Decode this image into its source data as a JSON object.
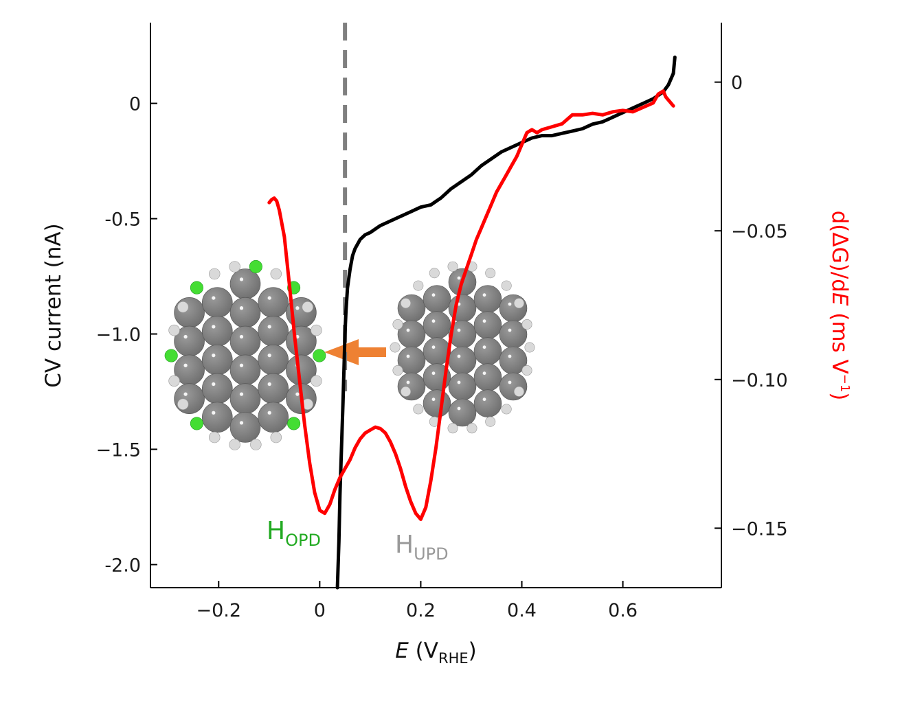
{
  "chart_data": {
    "type": "line",
    "xlabel": {
      "main": "E",
      "open": " (V",
      "sub": "RHE",
      "close": ")"
    },
    "ylabel_left": "CV current (nA)",
    "ylabel_right": {
      "main": "d(ΔG)/d",
      "italic": "E",
      "unit_open": " (ms V",
      "sup": "−1",
      "unit_close": ")"
    },
    "xlim": [
      -0.335,
      0.795
    ],
    "ylim_left": [
      -2.1,
      0.35
    ],
    "ylim_right": [
      -0.17,
      0.02
    ],
    "x_ticks": [
      {
        "value": -0.2,
        "label": "−0.2"
      },
      {
        "value": 0,
        "label": "0"
      },
      {
        "value": 0.2,
        "label": "0.2"
      },
      {
        "value": 0.4,
        "label": "0.4"
      },
      {
        "value": 0.6,
        "label": "0.6"
      }
    ],
    "y_left_ticks": [
      {
        "value": 0,
        "label": "0"
      },
      {
        "value": -0.5,
        "label": "-0.5"
      },
      {
        "value": -1.0,
        "label": "−1.0"
      },
      {
        "value": -1.5,
        "label": "−1.5"
      },
      {
        "value": -2.0,
        "label": "-2.0"
      }
    ],
    "y_right_ticks": [
      {
        "value": 0,
        "label": "0"
      },
      {
        "value": -0.05,
        "label": "−0.05"
      },
      {
        "value": -0.1,
        "label": "−0.10"
      },
      {
        "value": -0.15,
        "label": "−0.15"
      }
    ],
    "series": [
      {
        "axis": "left",
        "color": "#000000",
        "x": [
          0.035,
          0.038,
          0.04,
          0.043,
          0.046,
          0.048,
          0.05,
          0.052,
          0.055,
          0.06,
          0.065,
          0.07,
          0.08,
          0.09,
          0.1,
          0.12,
          0.15,
          0.18,
          0.2,
          0.22,
          0.24,
          0.26,
          0.28,
          0.3,
          0.32,
          0.34,
          0.36,
          0.38,
          0.4,
          0.42,
          0.44,
          0.46,
          0.48,
          0.5,
          0.52,
          0.54,
          0.56,
          0.58,
          0.6,
          0.62,
          0.64,
          0.66,
          0.68,
          0.69,
          0.7,
          0.703
        ],
        "values": [
          -2.1,
          -1.9,
          -1.7,
          -1.5,
          -1.3,
          -1.15,
          -1.0,
          -0.9,
          -0.8,
          -0.72,
          -0.66,
          -0.63,
          -0.59,
          -0.57,
          -0.56,
          -0.53,
          -0.5,
          -0.47,
          -0.45,
          -0.44,
          -0.41,
          -0.37,
          -0.34,
          -0.31,
          -0.27,
          -0.24,
          -0.21,
          -0.19,
          -0.17,
          -0.15,
          -0.14,
          -0.14,
          -0.13,
          -0.12,
          -0.11,
          -0.09,
          -0.08,
          -0.06,
          -0.04,
          -0.02,
          0.0,
          0.02,
          0.05,
          0.08,
          0.13,
          0.2
        ]
      },
      {
        "axis": "right",
        "color": "#ff0000",
        "x": [
          -0.1,
          -0.095,
          -0.09,
          -0.085,
          -0.08,
          -0.07,
          -0.06,
          -0.05,
          -0.04,
          -0.03,
          -0.02,
          -0.01,
          0.0,
          0.01,
          0.02,
          0.03,
          0.04,
          0.05,
          0.06,
          0.07,
          0.08,
          0.09,
          0.1,
          0.11,
          0.12,
          0.13,
          0.14,
          0.15,
          0.16,
          0.17,
          0.18,
          0.19,
          0.2,
          0.21,
          0.22,
          0.23,
          0.24,
          0.25,
          0.26,
          0.27,
          0.28,
          0.29,
          0.3,
          0.31,
          0.32,
          0.33,
          0.34,
          0.35,
          0.36,
          0.37,
          0.38,
          0.39,
          0.4,
          0.41,
          0.42,
          0.43,
          0.44,
          0.46,
          0.48,
          0.5,
          0.52,
          0.54,
          0.56,
          0.58,
          0.6,
          0.62,
          0.64,
          0.66,
          0.67,
          0.68,
          0.685,
          0.69,
          0.7
        ],
        "values": [
          -0.0405,
          -0.0395,
          -0.039,
          -0.04,
          -0.043,
          -0.052,
          -0.068,
          -0.085,
          -0.1,
          -0.115,
          -0.128,
          -0.138,
          -0.144,
          -0.145,
          -0.142,
          -0.137,
          -0.133,
          -0.13,
          -0.127,
          -0.123,
          -0.12,
          -0.118,
          -0.117,
          -0.116,
          -0.1165,
          -0.118,
          -0.121,
          -0.125,
          -0.13,
          -0.136,
          -0.141,
          -0.145,
          -0.147,
          -0.143,
          -0.134,
          -0.123,
          -0.11,
          -0.097,
          -0.085,
          -0.075,
          -0.068,
          -0.063,
          -0.058,
          -0.053,
          -0.049,
          -0.045,
          -0.041,
          -0.037,
          -0.034,
          -0.031,
          -0.028,
          -0.025,
          -0.021,
          -0.017,
          -0.016,
          -0.017,
          -0.016,
          -0.015,
          -0.014,
          -0.011,
          -0.011,
          -0.0105,
          -0.011,
          -0.01,
          -0.0095,
          -0.01,
          -0.0085,
          -0.007,
          -0.004,
          -0.003,
          -0.005,
          -0.006,
          -0.008
        ]
      }
    ],
    "vline": {
      "x": 0.05,
      "color": "#7f7f7f",
      "style": "dashed"
    },
    "annotations": [
      {
        "id": "hopd",
        "main": "H",
        "sub": "OPD",
        "color": "#22aa22"
      },
      {
        "id": "hupd",
        "main": "H",
        "sub": "UPD",
        "color": "#999999"
      }
    ],
    "cluster_colors": {
      "pt_atom": "#6e6e6e",
      "h_atom": "#d9d9d9",
      "h_opd_atom": "#44dd33",
      "arrow": "#ee8133"
    }
  }
}
